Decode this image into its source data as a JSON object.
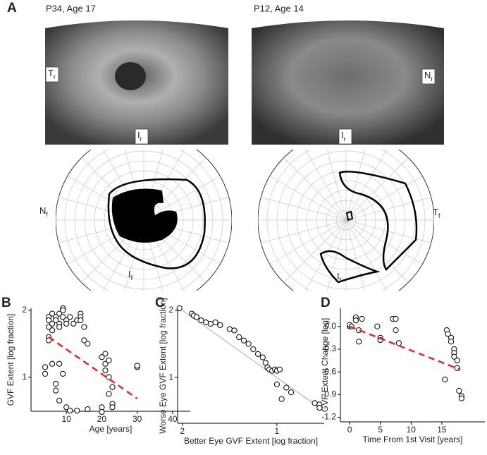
{
  "panel_a": {
    "letter": "A",
    "left": {
      "caption": "P34, Age 17",
      "image_labels": [
        {
          "main": "T",
          "sub": "r"
        },
        {
          "main": "I",
          "sub": "r"
        }
      ],
      "field_labels": [
        {
          "main": "N",
          "sub": "f"
        },
        {
          "main": "I",
          "sub": "f"
        }
      ]
    },
    "right": {
      "caption": "P12, Age 14",
      "image_labels": [
        {
          "main": "N",
          "sub": "r"
        },
        {
          "main": "I",
          "sub": "r"
        }
      ],
      "field_labels": [
        {
          "main": "T",
          "sub": "f"
        },
        {
          "main": "I",
          "sub": "f"
        }
      ]
    }
  },
  "chart_data": [
    {
      "type": "scatter",
      "panel": "B",
      "xlabel": "Age [years]",
      "ylabel": "GVF Extent [log fraction]",
      "color": "#000000",
      "x": [
        4,
        4,
        6,
        7,
        7,
        8,
        9,
        8,
        10,
        11,
        13,
        16,
        20,
        20,
        22,
        23,
        23,
        30,
        30,
        5,
        5,
        5,
        5,
        5,
        6,
        6,
        6,
        7,
        7,
        8,
        8,
        8,
        9,
        9,
        9,
        10,
        10,
        11,
        12,
        13,
        14,
        14,
        14,
        15,
        15,
        16,
        20,
        21,
        21,
        21,
        22,
        22,
        23
      ],
      "values": [
        1.15,
        1.05,
        1.2,
        0.9,
        0.8,
        1.2,
        1.05,
        0.65,
        0.55,
        0.5,
        0.5,
        0.52,
        0.48,
        0.55,
        0.75,
        0.6,
        0.55,
        1.15,
        1.17,
        1.9,
        1.85,
        1.75,
        1.6,
        1.55,
        1.95,
        1.8,
        1.7,
        1.9,
        1.85,
        1.95,
        1.8,
        1.75,
        2.03,
        1.9,
        2.0,
        1.85,
        1.8,
        1.9,
        1.8,
        1.85,
        1.95,
        1.9,
        1.85,
        1.75,
        1.55,
        1.5,
        1.3,
        1.35,
        1.2,
        1.1,
        1.25,
        1.0,
        0.85
      ],
      "trend": {
        "x": [
          5,
          30
        ],
        "values": [
          1.6,
          0.68
        ],
        "color": "#e8262a"
      },
      "xlim": [
        0,
        45
      ],
      "ylim": [
        0.49,
        2.03
      ],
      "xticks": [
        10,
        20,
        30,
        40
      ],
      "yticks": [
        1,
        2
      ]
    },
    {
      "type": "scatter",
      "panel": "C",
      "xlabel": "Better Eye GVF Extent [log fraction]",
      "ylabel": "Worse Eye GVF Extent [log fraction]",
      "color": "#000000",
      "identity_line": true,
      "x": [
        2.03,
        1.9,
        1.88,
        1.85,
        1.8,
        1.75,
        1.7,
        1.65,
        1.6,
        1.5,
        1.45,
        1.4,
        1.35,
        1.3,
        1.25,
        1.2,
        1.15,
        1.12,
        1.1,
        1.08,
        1.05,
        1.02,
        1.0,
        0.97,
        1.0,
        0.9,
        0.85,
        0.95,
        0.6,
        0.55,
        0.55
      ],
      "values": [
        2.03,
        1.95,
        1.92,
        1.9,
        1.85,
        1.82,
        1.8,
        1.82,
        1.78,
        1.72,
        1.7,
        1.6,
        1.55,
        1.5,
        1.42,
        1.35,
        1.3,
        1.22,
        1.15,
        1.12,
        1.1,
        1.12,
        1.1,
        1.12,
        0.9,
        0.85,
        0.78,
        0.68,
        0.62,
        0.6,
        0.55
      ],
      "xlim": [
        2.05,
        0.5
      ],
      "ylim": [
        0.32,
        2.03
      ],
      "xticks": [
        2,
        1
      ],
      "yticks": [
        1,
        2
      ]
    },
    {
      "type": "scatter",
      "panel": "D",
      "xlabel": "Time From 1st Visit [years]",
      "ylabel": "GVF Extent Change [log]",
      "color": "#000000",
      "x": [
        0,
        0,
        0.3,
        1,
        1,
        1.5,
        1.5,
        2,
        4.5,
        5,
        5,
        7,
        7.5,
        7.5,
        8,
        15.5,
        15.8,
        16,
        16.5,
        16.5,
        17,
        17,
        17,
        17.5,
        17.5,
        17.8,
        18.2,
        18.2
      ],
      "values": [
        0,
        0.02,
        0,
        0.12,
        0.08,
        -0.05,
        -0.2,
        0.1,
        0,
        -0.15,
        -0.18,
        0.1,
        0.1,
        -0.05,
        -0.22,
        -0.7,
        -0.05,
        -0.1,
        -0.15,
        -0.2,
        -0.3,
        -0.35,
        -0.4,
        -0.45,
        -0.55,
        -0.85,
        -0.92,
        -0.95
      ],
      "trend": {
        "x": [
          0,
          18
        ],
        "values": [
          0,
          -0.57
        ],
        "color": "#e8262a"
      },
      "xlim": [
        -1.5,
        22
      ],
      "ylim": [
        -1.26,
        0.24
      ],
      "xticks": [
        0,
        5,
        10,
        15
      ],
      "yticks": [
        {
          "value": 0,
          "label": "0.0"
        },
        -0.3,
        -0.6,
        -0.9,
        -1.2
      ]
    }
  ]
}
